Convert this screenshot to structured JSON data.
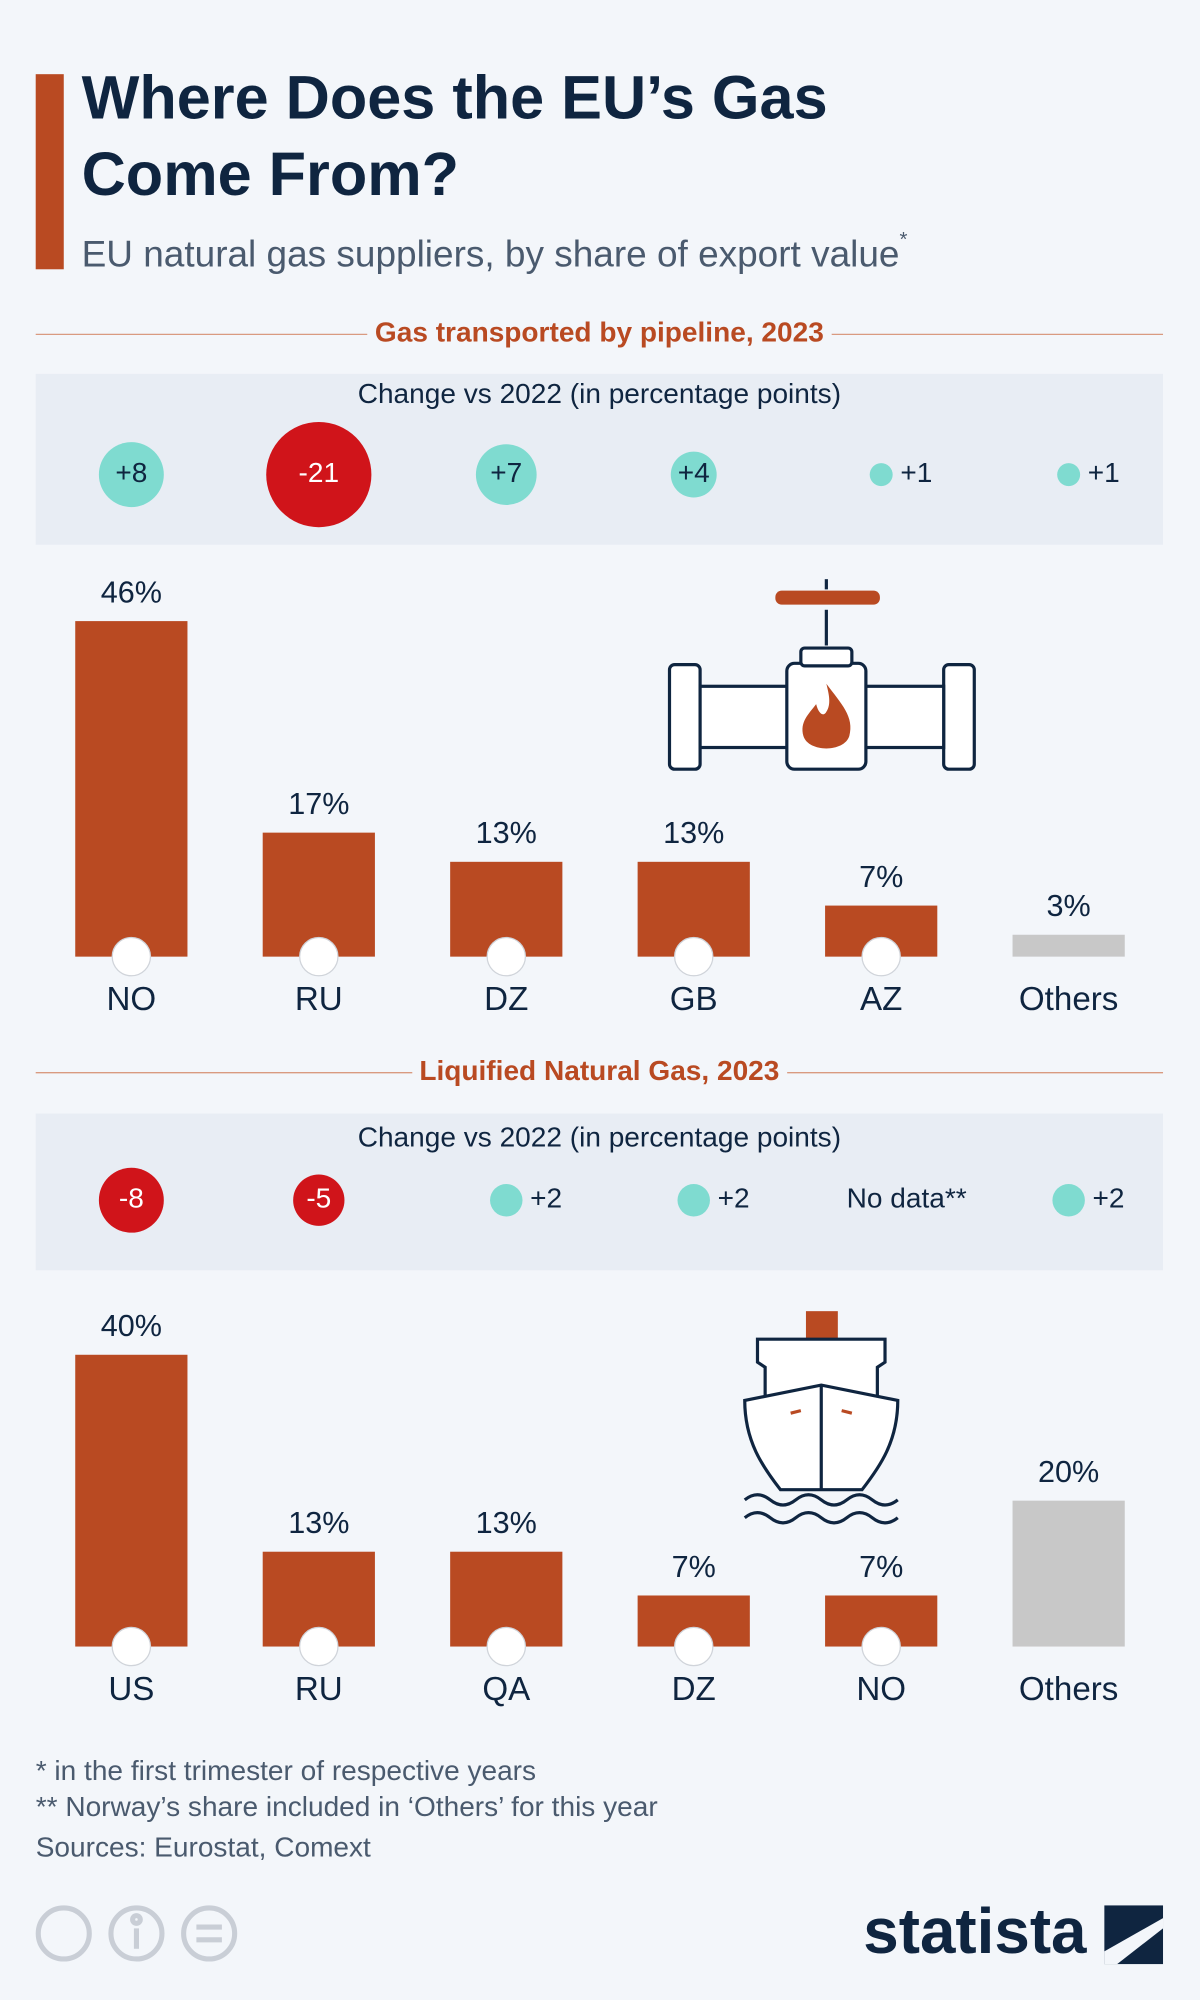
{
  "title_lines": [
    "Where Does the EU’s Gas",
    "Come From?"
  ],
  "subtitle": "EU natural gas suppliers, by share of export value",
  "subtitle_note": "*",
  "chart_data": [
    {
      "type": "bar",
      "title": "Gas transported by pipeline, 2023",
      "categories": [
        "NO",
        "RU",
        "DZ",
        "GB",
        "AZ",
        "Others"
      ],
      "values": [
        46,
        17,
        13,
        13,
        7,
        3
      ],
      "value_labels": [
        "46%",
        "17%",
        "13%",
        "13%",
        "7%",
        "3%"
      ],
      "colors": [
        "#b94a22",
        "#b94a22",
        "#b94a22",
        "#b94a22",
        "#b94a22",
        "#c8c8c8"
      ],
      "change_title": "Change vs 2022 (in percentage points)",
      "changes": [
        8,
        -21,
        7,
        4,
        1,
        1
      ],
      "change_labels": [
        "+8",
        "-21",
        "+7",
        "+4",
        "+1",
        "+1"
      ]
    },
    {
      "type": "bar",
      "title": "Liquified Natural Gas, 2023",
      "categories": [
        "US",
        "RU",
        "QA",
        "DZ",
        "NO",
        "Others"
      ],
      "values": [
        40,
        13,
        13,
        7,
        7,
        20
      ],
      "value_labels": [
        "40%",
        "13%",
        "13%",
        "7%",
        "7%",
        "20%"
      ],
      "colors": [
        "#b94a22",
        "#b94a22",
        "#b94a22",
        "#b94a22",
        "#b94a22",
        "#c8c8c8"
      ],
      "change_title": "Change vs 2022 (in percentage points)",
      "changes": [
        -8,
        -5,
        2,
        2,
        null,
        2
      ],
      "change_labels": [
        "-8",
        "-5",
        "+2",
        "+2",
        "No data**",
        "+2"
      ]
    }
  ],
  "footnotes": [
    "*   in the first trimester of respective years",
    "** Norway’s share included in ‘Others’ for this year"
  ],
  "sources": "Sources: Eurostat, Comext",
  "brand": "statista"
}
